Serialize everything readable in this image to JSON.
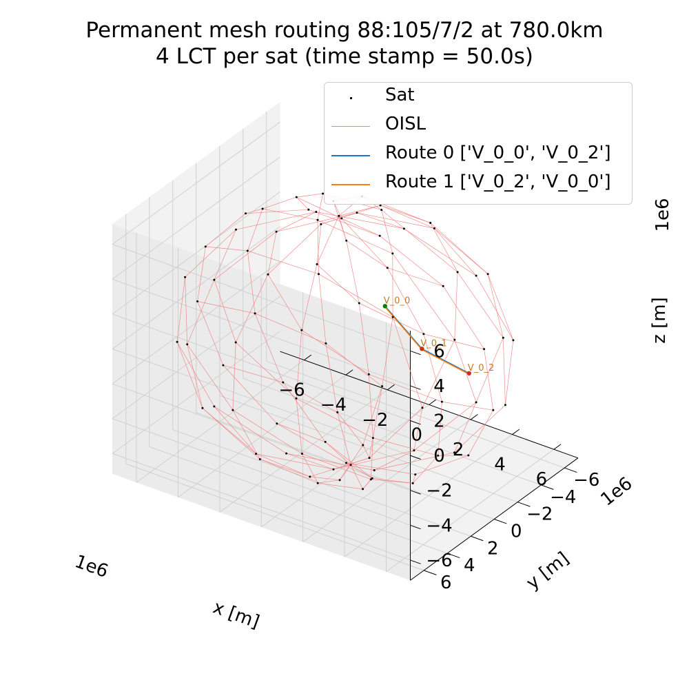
{
  "chart_data": {
    "type": "scatter",
    "title": "Permanent mesh routing 88:105/7/2 at 780.0km",
    "subtitle": "4 LCT per sat (time stamp = 50.0s)",
    "xlabel": "x [m]",
    "ylabel": "y [m]",
    "zlabel": "z [m]",
    "x_offset_label": "1e6",
    "y_offset_label": "1e6",
    "z_offset_label": "1e6",
    "x_ticks": [
      "−6",
      "−4",
      "−2",
      "0",
      "2",
      "4",
      "6"
    ],
    "y_ticks": [
      "−6",
      "−4",
      "−2",
      "0",
      "2",
      "4",
      "6"
    ],
    "z_ticks": [
      "−6",
      "−4",
      "−2",
      "0",
      "2",
      "4",
      "6"
    ],
    "xlim": [
      -7.16,
      7.16
    ],
    "ylim": [
      -7.16,
      7.16
    ],
    "zlim": [
      -7.16,
      7.16
    ],
    "grid": true,
    "legend_position": "top-right",
    "legend": [
      {
        "label": "Sat",
        "kind": "dot",
        "color": "#000000"
      },
      {
        "label": "OISL",
        "kind": "line",
        "color": "#f08080"
      },
      {
        "label": "Route 0 ['V_0_0', 'V_0_2']",
        "kind": "line",
        "color": "#1f77b4"
      },
      {
        "label": "Route 1 ['V_0_2', 'V_0_0']",
        "kind": "line",
        "color": "#ff7f0e"
      }
    ],
    "constellation": {
      "total_satellites": 88,
      "planes": 7,
      "orbit_radius_km": 7158,
      "altitude_km": 780.0,
      "satellite_color": "#000000",
      "oisl_color": "#f08080"
    },
    "route_nodes": [
      {
        "label": "V_0_0",
        "color": "#008000"
      },
      {
        "label": "V_0_1",
        "color": "#cc3300"
      },
      {
        "label": "V_0_2",
        "color": "#d62728"
      }
    ],
    "routes": [
      {
        "name": "Route 0 ['V_0_0', 'V_0_2']",
        "color": "#1f77b4",
        "path": [
          "V_0_0",
          "V_0_1",
          "V_0_2"
        ]
      },
      {
        "name": "Route 1 ['V_0_2', 'V_0_0']",
        "color": "#ff7f0e",
        "path": [
          "V_0_2",
          "V_0_1",
          "V_0_0"
        ]
      }
    ]
  }
}
